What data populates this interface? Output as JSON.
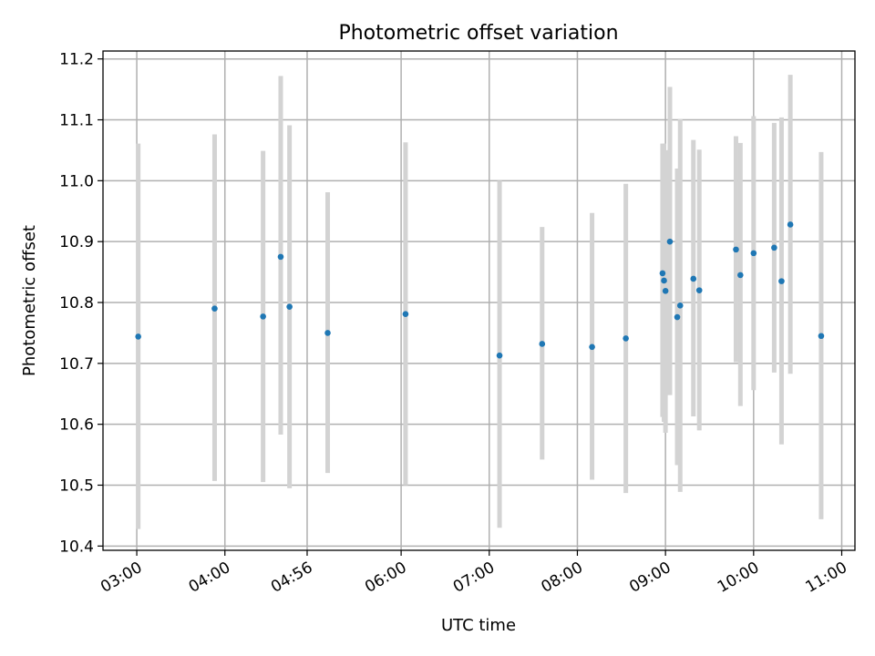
{
  "chart_data": {
    "type": "scatter",
    "title": "Photometric offset variation",
    "xlabel": "UTC time",
    "ylabel": "Photometric offset",
    "x_ticks": [
      "03:00",
      "04:00",
      "04:56",
      "06:00",
      "07:00",
      "08:00",
      "09:00",
      "10:00",
      "11:00"
    ],
    "y_ticks": [
      10.4,
      10.5,
      10.6,
      10.7,
      10.8,
      10.9,
      11.0,
      11.1,
      11.2
    ],
    "xlim": [
      "02:37",
      "11:09"
    ],
    "ylim": [
      10.393,
      11.213
    ],
    "grid": true,
    "colors": {
      "point": "#1f77b4",
      "errorbar": "#d3d3d3"
    },
    "points": [
      {
        "x": "03:01",
        "y": 10.744,
        "ylo": 10.428,
        "yhi": 11.061
      },
      {
        "x": "03:53",
        "y": 10.79,
        "ylo": 10.507,
        "yhi": 11.076
      },
      {
        "x": "04:26",
        "y": 10.777,
        "ylo": 10.505,
        "yhi": 11.049
      },
      {
        "x": "04:38",
        "y": 10.875,
        "ylo": 10.583,
        "yhi": 11.172
      },
      {
        "x": "04:44",
        "y": 10.793,
        "ylo": 10.495,
        "yhi": 11.091
      },
      {
        "x": "05:10",
        "y": 10.75,
        "ylo": 10.52,
        "yhi": 10.981
      },
      {
        "x": "06:03",
        "y": 10.781,
        "ylo": 10.5,
        "yhi": 11.063
      },
      {
        "x": "07:07",
        "y": 10.713,
        "ylo": 10.43,
        "yhi": 11.0
      },
      {
        "x": "07:36",
        "y": 10.732,
        "ylo": 10.542,
        "yhi": 10.924
      },
      {
        "x": "08:10",
        "y": 10.727,
        "ylo": 10.509,
        "yhi": 10.947
      },
      {
        "x": "08:33",
        "y": 10.741,
        "ylo": 10.487,
        "yhi": 10.995
      },
      {
        "x": "08:58",
        "y": 10.848,
        "ylo": 10.612,
        "yhi": 11.061
      },
      {
        "x": "08:59",
        "y": 10.836,
        "ylo": 10.604,
        "yhi": 11.061
      },
      {
        "x": "09:00",
        "y": 10.819,
        "ylo": 10.586,
        "yhi": 11.05
      },
      {
        "x": "09:03",
        "y": 10.9,
        "ylo": 10.648,
        "yhi": 11.154
      },
      {
        "x": "09:08",
        "y": 10.776,
        "ylo": 10.533,
        "yhi": 11.02
      },
      {
        "x": "09:10",
        "y": 10.795,
        "ylo": 10.489,
        "yhi": 11.101
      },
      {
        "x": "09:19",
        "y": 10.839,
        "ylo": 10.613,
        "yhi": 11.067
      },
      {
        "x": "09:23",
        "y": 10.82,
        "ylo": 10.59,
        "yhi": 11.051
      },
      {
        "x": "09:48",
        "y": 10.887,
        "ylo": 10.702,
        "yhi": 11.073
      },
      {
        "x": "09:51",
        "y": 10.845,
        "ylo": 10.63,
        "yhi": 11.062
      },
      {
        "x": "10:00",
        "y": 10.881,
        "ylo": 10.656,
        "yhi": 11.106
      },
      {
        "x": "10:14",
        "y": 10.89,
        "ylo": 10.685,
        "yhi": 11.095
      },
      {
        "x": "10:19",
        "y": 10.835,
        "ylo": 10.567,
        "yhi": 11.104
      },
      {
        "x": "10:25",
        "y": 10.928,
        "ylo": 10.683,
        "yhi": 11.174
      },
      {
        "x": "10:46",
        "y": 10.745,
        "ylo": 10.444,
        "yhi": 11.047
      }
    ]
  }
}
